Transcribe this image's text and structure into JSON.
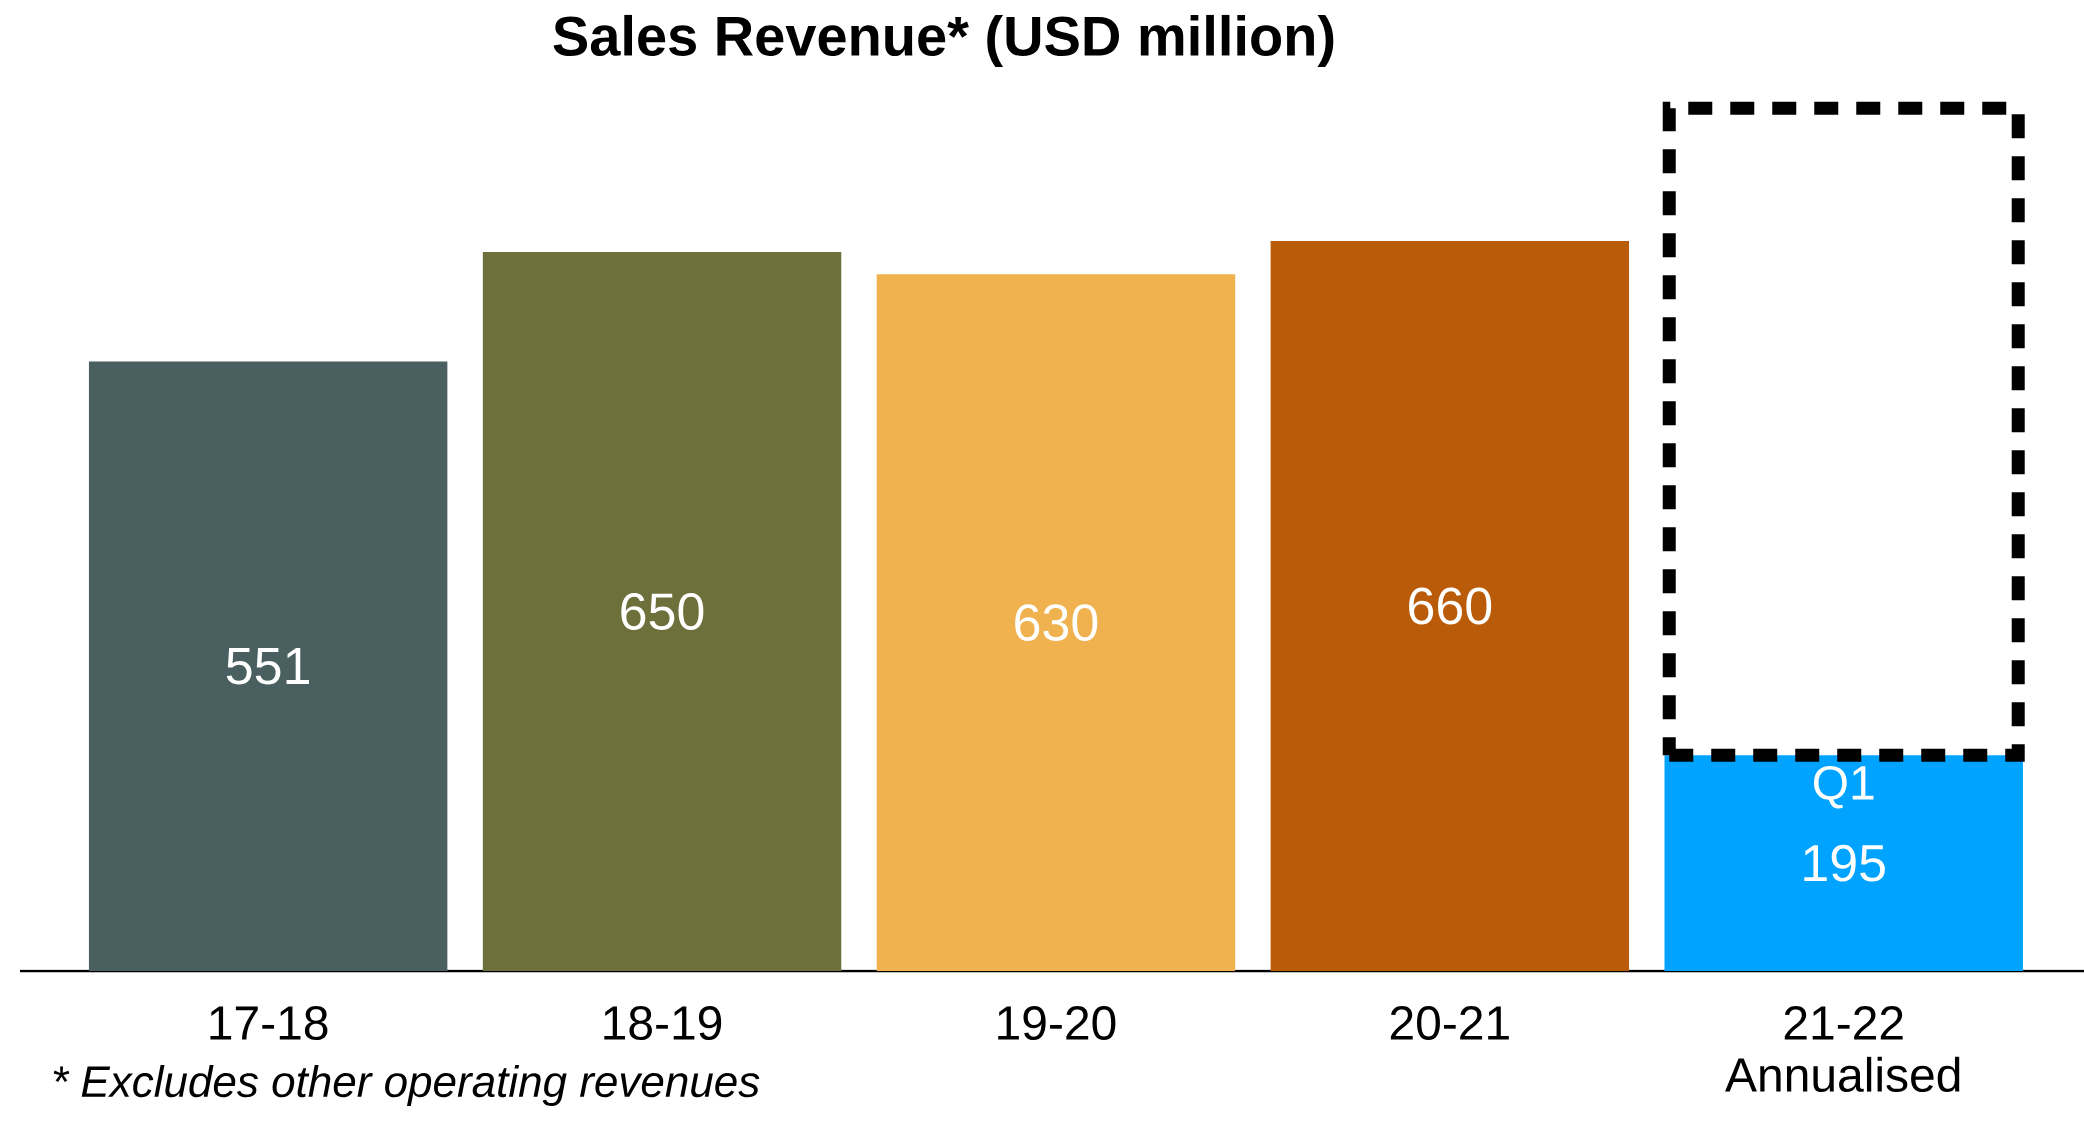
{
  "chart_data": {
    "type": "bar",
    "title": "Sales Revenue* (USD million)",
    "stacked": true,
    "categories": [
      "17-18",
      "18-19",
      "19-20",
      "20-21",
      "21-22 Annualised"
    ],
    "series": [
      {
        "colors": [
          "#4a5f60",
          "#6d703b",
          "#efb24f",
          "#b95b09",
          "#00a3ff"
        ],
        "values": [
          551,
          650,
          630,
          660,
          195
        ],
        "value_labels": [
          "551",
          "650",
          "630",
          "660",
          "195"
        ]
      },
      {
        "color": "#000000",
        "line_style": "dashed",
        "values": [
          null,
          null,
          null,
          null,
          585
        ]
      }
    ],
    "annotations": [
      "Q1",
      "* Excludes other operating revenues"
    ]
  }
}
